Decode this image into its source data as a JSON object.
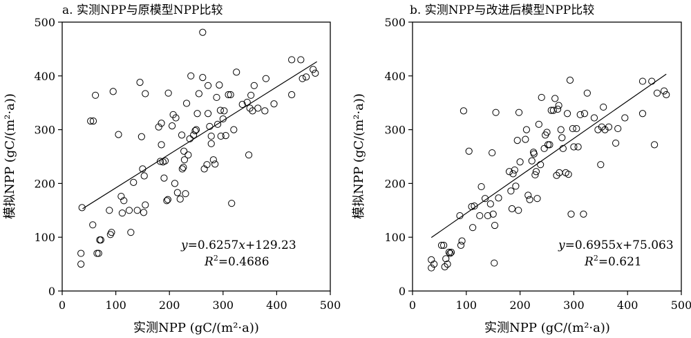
{
  "chart_data": [
    {
      "type": "scatter",
      "title": "a. 实测NPP与原模型NPP比较",
      "xlabel": "实测NPP (gC/(m²·a))",
      "ylabel": "模拟NPP (gC/(m²·a))",
      "xlim": [
        0,
        500
      ],
      "ylim": [
        0,
        500
      ],
      "xticks": [
        "0",
        "100",
        "200",
        "300",
        "400",
        "500"
      ],
      "yticks": [
        "0",
        "100",
        "200",
        "300",
        "400",
        "500"
      ],
      "grid": false,
      "equation_prefix": "y",
      "equation_eq": "=0.6257",
      "equation_x": "x",
      "equation_rest": "+129.23",
      "r2_label": "R",
      "r2_sup": "2",
      "r2_value": "=0.4686",
      "fit": {
        "slope": 0.6257,
        "intercept": 129.23,
        "x_range": [
          38,
          475
        ]
      },
      "points": [
        [
          37,
          155
        ],
        [
          35,
          70
        ],
        [
          35,
          50
        ],
        [
          57,
          123
        ],
        [
          53,
          316
        ],
        [
          58,
          316
        ],
        [
          62,
          364
        ],
        [
          65,
          70
        ],
        [
          68,
          70
        ],
        [
          70,
          95
        ],
        [
          72,
          95
        ],
        [
          88,
          150
        ],
        [
          90,
          105
        ],
        [
          92,
          109
        ],
        [
          95,
          371
        ],
        [
          105,
          291
        ],
        [
          110,
          176
        ],
        [
          112,
          145
        ],
        [
          115,
          168
        ],
        [
          125,
          150
        ],
        [
          128,
          109
        ],
        [
          133,
          202
        ],
        [
          140,
          150
        ],
        [
          145,
          388
        ],
        [
          148,
          287
        ],
        [
          150,
          227
        ],
        [
          152,
          146
        ],
        [
          153,
          214
        ],
        [
          155,
          160
        ],
        [
          155,
          367
        ],
        [
          180,
          305
        ],
        [
          183,
          241
        ],
        [
          185,
          272
        ],
        [
          185,
          312
        ],
        [
          188,
          240
        ],
        [
          190,
          210
        ],
        [
          192,
          242
        ],
        [
          195,
          168
        ],
        [
          197,
          170
        ],
        [
          198,
          368
        ],
        [
          205,
          307
        ],
        [
          207,
          328
        ],
        [
          210,
          200
        ],
        [
          212,
          322
        ],
        [
          215,
          183
        ],
        [
          220,
          171
        ],
        [
          223,
          290
        ],
        [
          224,
          227
        ],
        [
          226,
          230
        ],
        [
          227,
          260
        ],
        [
          228,
          244
        ],
        [
          230,
          181
        ],
        [
          232,
          349
        ],
        [
          235,
          253
        ],
        [
          240,
          400
        ],
        [
          238,
          283
        ],
        [
          245,
          290
        ],
        [
          248,
          298
        ],
        [
          250,
          300
        ],
        [
          252,
          330
        ],
        [
          255,
          367
        ],
        [
          262,
          397
        ],
        [
          262,
          481
        ],
        [
          265,
          227
        ],
        [
          270,
          235
        ],
        [
          272,
          382
        ],
        [
          272,
          330
        ],
        [
          275,
          306
        ],
        [
          278,
          274
        ],
        [
          278,
          288
        ],
        [
          282,
          244
        ],
        [
          285,
          236
        ],
        [
          288,
          360
        ],
        [
          290,
          310
        ],
        [
          293,
          383
        ],
        [
          295,
          336
        ],
        [
          296,
          288
        ],
        [
          300,
          320
        ],
        [
          302,
          335
        ],
        [
          305,
          289
        ],
        [
          310,
          365
        ],
        [
          314,
          365
        ],
        [
          316,
          163
        ],
        [
          320,
          300
        ],
        [
          325,
          407
        ],
        [
          336,
          347
        ],
        [
          345,
          351
        ],
        [
          348,
          253
        ],
        [
          350,
          340
        ],
        [
          352,
          364
        ],
        [
          355,
          335
        ],
        [
          358,
          382
        ],
        [
          365,
          340
        ],
        [
          378,
          335
        ],
        [
          380,
          395
        ],
        [
          395,
          348
        ],
        [
          428,
          430
        ],
        [
          428,
          365
        ],
        [
          445,
          430
        ],
        [
          448,
          395
        ],
        [
          455,
          398
        ],
        [
          468,
          412
        ],
        [
          472,
          405
        ]
      ]
    },
    {
      "type": "scatter",
      "title": "b. 实测NPP与改进后模型NPP比较",
      "xlabel": "实测NPP (gC/(m²·a))",
      "ylabel": "模拟NPP (gC/(m²·a))",
      "xlim": [
        0,
        500
      ],
      "ylim": [
        0,
        500
      ],
      "xticks": [
        "0",
        "100",
        "200",
        "300",
        "400",
        "500"
      ],
      "yticks": [
        "0",
        "100",
        "200",
        "300",
        "400",
        "500"
      ],
      "grid": false,
      "equation_prefix": "y",
      "equation_eq": "=0.6955",
      "equation_x": "x",
      "equation_rest": "+75.063",
      "r2_label": "R",
      "r2_sup": "2",
      "r2_value": "=0.621",
      "fit": {
        "slope": 0.6955,
        "intercept": 75.063,
        "x_range": [
          35,
          472
        ]
      },
      "points": [
        [
          35,
          58
        ],
        [
          35,
          43
        ],
        [
          40,
          50
        ],
        [
          54,
          85
        ],
        [
          58,
          85
        ],
        [
          60,
          45
        ],
        [
          62,
          60
        ],
        [
          65,
          50
        ],
        [
          68,
          72
        ],
        [
          70,
          70
        ],
        [
          72,
          72
        ],
        [
          88,
          140
        ],
        [
          90,
          85
        ],
        [
          92,
          93
        ],
        [
          95,
          335
        ],
        [
          105,
          260
        ],
        [
          110,
          157
        ],
        [
          112,
          118
        ],
        [
          115,
          158
        ],
        [
          125,
          140
        ],
        [
          128,
          194
        ],
        [
          135,
          172
        ],
        [
          140,
          140
        ],
        [
          145,
          162
        ],
        [
          148,
          257
        ],
        [
          150,
          143
        ],
        [
          152,
          52
        ],
        [
          153,
          122
        ],
        [
          155,
          332
        ],
        [
          160,
          173
        ],
        [
          180,
          222
        ],
        [
          183,
          186
        ],
        [
          185,
          153
        ],
        [
          187,
          218
        ],
        [
          190,
          225
        ],
        [
          192,
          195
        ],
        [
          195,
          280
        ],
        [
          197,
          150
        ],
        [
          198,
          332
        ],
        [
          200,
          240
        ],
        [
          210,
          282
        ],
        [
          212,
          300
        ],
        [
          215,
          178
        ],
        [
          218,
          170
        ],
        [
          222,
          242
        ],
        [
          225,
          258
        ],
        [
          226,
          255
        ],
        [
          228,
          216
        ],
        [
          230,
          222
        ],
        [
          232,
          172
        ],
        [
          235,
          310
        ],
        [
          238,
          235
        ],
        [
          240,
          360
        ],
        [
          245,
          265
        ],
        [
          247,
          290
        ],
        [
          250,
          295
        ],
        [
          252,
          272
        ],
        [
          255,
          272
        ],
        [
          258,
          336
        ],
        [
          262,
          336
        ],
        [
          265,
          358
        ],
        [
          268,
          215
        ],
        [
          270,
          338
        ],
        [
          272,
          345
        ],
        [
          273,
          220
        ],
        [
          276,
          300
        ],
        [
          278,
          285
        ],
        [
          280,
          265
        ],
        [
          285,
          220
        ],
        [
          288,
          330
        ],
        [
          290,
          217
        ],
        [
          293,
          392
        ],
        [
          295,
          143
        ],
        [
          298,
          302
        ],
        [
          300,
          268
        ],
        [
          305,
          302
        ],
        [
          308,
          268
        ],
        [
          312,
          328
        ],
        [
          318,
          143
        ],
        [
          320,
          330
        ],
        [
          325,
          368
        ],
        [
          338,
          322
        ],
        [
          345,
          300
        ],
        [
          350,
          235
        ],
        [
          352,
          305
        ],
        [
          355,
          342
        ],
        [
          358,
          300
        ],
        [
          365,
          305
        ],
        [
          378,
          275
        ],
        [
          382,
          302
        ],
        [
          395,
          322
        ],
        [
          428,
          390
        ],
        [
          428,
          330
        ],
        [
          445,
          390
        ],
        [
          450,
          272
        ],
        [
          455,
          368
        ],
        [
          468,
          372
        ],
        [
          472,
          365
        ]
      ]
    }
  ]
}
